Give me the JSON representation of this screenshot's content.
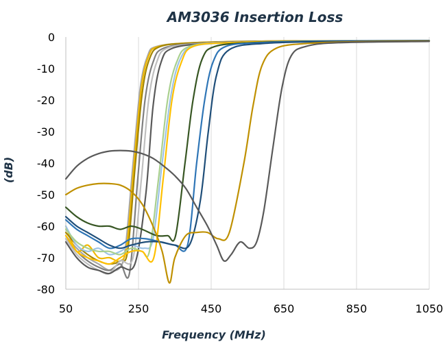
{
  "chart_data": {
    "type": "line",
    "title": "AM3036 Insertion Loss",
    "xlabel": "Frequency (MHz)",
    "ylabel": "(dB)",
    "xlim": [
      50,
      1050
    ],
    "ylim": [
      -80,
      0
    ],
    "x_ticks": [
      50,
      250,
      450,
      650,
      850,
      1050
    ],
    "y_ticks": [
      0,
      -10,
      -20,
      -30,
      -40,
      -50,
      -60,
      -70,
      -80
    ],
    "x_tick_labels": [
      "50",
      "250",
      "450",
      "650",
      "850",
      "1050"
    ],
    "y_tick_labels": [
      "0",
      "-10",
      "-20",
      "-30",
      "-40",
      "-50",
      "-60",
      "-70",
      "-80"
    ],
    "grid": "vertical",
    "legend": "none",
    "series": [
      {
        "color": "#a6a6a6",
        "values": [
          [
            50,
            -63
          ],
          [
            80,
            -67
          ],
          [
            110,
            -70
          ],
          [
            140,
            -72
          ],
          [
            170,
            -74
          ],
          [
            200,
            -73
          ],
          [
            215,
            -66
          ],
          [
            235,
            -40
          ],
          [
            255,
            -16
          ],
          [
            275,
            -6
          ],
          [
            300,
            -3
          ],
          [
            400,
            -1.8
          ],
          [
            600,
            -1.3
          ],
          [
            1050,
            -1.2
          ]
        ]
      },
      {
        "color": "#f0b800",
        "values": [
          [
            50,
            -60
          ],
          [
            80,
            -68
          ],
          [
            110,
            -66
          ],
          [
            140,
            -70
          ],
          [
            170,
            -70
          ],
          [
            200,
            -71
          ],
          [
            218,
            -66
          ],
          [
            238,
            -40
          ],
          [
            258,
            -16
          ],
          [
            278,
            -6
          ],
          [
            305,
            -3
          ],
          [
            400,
            -1.8
          ],
          [
            600,
            -1.3
          ],
          [
            1050,
            -1.2
          ]
        ]
      },
      {
        "color": "#a38500",
        "values": [
          [
            50,
            -62
          ],
          [
            80,
            -66
          ],
          [
            110,
            -69
          ],
          [
            140,
            -71
          ],
          [
            170,
            -72
          ],
          [
            200,
            -71
          ],
          [
            220,
            -68
          ],
          [
            240,
            -42
          ],
          [
            260,
            -18
          ],
          [
            280,
            -7
          ],
          [
            310,
            -3
          ],
          [
            400,
            -1.9
          ],
          [
            600,
            -1.3
          ],
          [
            1050,
            -1.2
          ]
        ]
      },
      {
        "color": "#7f7f7f",
        "values": [
          [
            50,
            -64
          ],
          [
            80,
            -68
          ],
          [
            110,
            -71
          ],
          [
            140,
            -73
          ],
          [
            170,
            -74
          ],
          [
            200,
            -72
          ],
          [
            225,
            -75
          ],
          [
            248,
            -45
          ],
          [
            268,
            -20
          ],
          [
            290,
            -8
          ],
          [
            320,
            -3.5
          ],
          [
            420,
            -2
          ],
          [
            600,
            -1.4
          ],
          [
            1050,
            -1.2
          ]
        ]
      },
      {
        "color": "#bfbfbf",
        "values": [
          [
            50,
            -64
          ],
          [
            80,
            -69
          ],
          [
            110,
            -72
          ],
          [
            140,
            -74
          ],
          [
            170,
            -75
          ],
          [
            200,
            -71
          ],
          [
            235,
            -70
          ],
          [
            258,
            -45
          ],
          [
            278,
            -20
          ],
          [
            300,
            -8
          ],
          [
            330,
            -3.5
          ],
          [
            430,
            -2
          ],
          [
            600,
            -1.4
          ],
          [
            1050,
            -1.2
          ]
        ]
      },
      {
        "color": "#595959",
        "values": [
          [
            50,
            -65
          ],
          [
            80,
            -70
          ],
          [
            110,
            -73
          ],
          [
            140,
            -74
          ],
          [
            170,
            -75
          ],
          [
            200,
            -73
          ],
          [
            240,
            -72
          ],
          [
            270,
            -50
          ],
          [
            290,
            -22
          ],
          [
            312,
            -8
          ],
          [
            345,
            -3.5
          ],
          [
            450,
            -2
          ],
          [
            620,
            -1.4
          ],
          [
            1050,
            -1.2
          ]
        ]
      },
      {
        "color": "#9dc3e6",
        "values": [
          [
            50,
            -60
          ],
          [
            80,
            -66
          ],
          [
            110,
            -68
          ],
          [
            140,
            -67
          ],
          [
            170,
            -69
          ],
          [
            200,
            -68
          ],
          [
            230,
            -66
          ],
          [
            265,
            -67
          ],
          [
            290,
            -64
          ],
          [
            315,
            -40
          ],
          [
            340,
            -18
          ],
          [
            365,
            -7
          ],
          [
            400,
            -3
          ],
          [
            500,
            -1.8
          ],
          [
            700,
            -1.3
          ],
          [
            1050,
            -1.2
          ]
        ]
      },
      {
        "color": "#a9d08e",
        "values": [
          [
            50,
            -61
          ],
          [
            80,
            -65
          ],
          [
            110,
            -67
          ],
          [
            140,
            -68
          ],
          [
            170,
            -68
          ],
          [
            200,
            -69
          ],
          [
            230,
            -67
          ],
          [
            260,
            -68
          ],
          [
            280,
            -68
          ],
          [
            305,
            -45
          ],
          [
            330,
            -20
          ],
          [
            355,
            -8
          ],
          [
            390,
            -3
          ],
          [
            500,
            -1.8
          ],
          [
            700,
            -1.3
          ],
          [
            1050,
            -1.2
          ]
        ]
      },
      {
        "color": "#ffc000",
        "values": [
          [
            50,
            -63
          ],
          [
            80,
            -68
          ],
          [
            110,
            -70
          ],
          [
            140,
            -71
          ],
          [
            170,
            -72
          ],
          [
            200,
            -70
          ],
          [
            230,
            -68
          ],
          [
            260,
            -68
          ],
          [
            292,
            -70
          ],
          [
            318,
            -45
          ],
          [
            342,
            -20
          ],
          [
            368,
            -8
          ],
          [
            400,
            -3
          ],
          [
            500,
            -1.8
          ],
          [
            700,
            -1.3
          ],
          [
            1050,
            -1.2
          ]
        ]
      },
      {
        "color": "#375623",
        "values": [
          [
            50,
            -54
          ],
          [
            80,
            -57
          ],
          [
            110,
            -59
          ],
          [
            140,
            -60
          ],
          [
            170,
            -60
          ],
          [
            200,
            -61
          ],
          [
            230,
            -60
          ],
          [
            260,
            -61
          ],
          [
            300,
            -63
          ],
          [
            330,
            -63
          ],
          [
            352,
            -63
          ],
          [
            378,
            -40
          ],
          [
            400,
            -20
          ],
          [
            425,
            -7
          ],
          [
            460,
            -3
          ],
          [
            560,
            -1.8
          ],
          [
            750,
            -1.3
          ],
          [
            1050,
            -1.2
          ]
        ]
      },
      {
        "color": "#2e75b6",
        "values": [
          [
            50,
            -58
          ],
          [
            80,
            -61
          ],
          [
            110,
            -63
          ],
          [
            140,
            -65
          ],
          [
            170,
            -67
          ],
          [
            200,
            -66
          ],
          [
            230,
            -64
          ],
          [
            270,
            -64
          ],
          [
            310,
            -65
          ],
          [
            350,
            -66
          ],
          [
            385,
            -66
          ],
          [
            410,
            -40
          ],
          [
            432,
            -20
          ],
          [
            455,
            -8
          ],
          [
            490,
            -3
          ],
          [
            590,
            -1.8
          ],
          [
            780,
            -1.3
          ],
          [
            1050,
            -1.2
          ]
        ]
      },
      {
        "color": "#1f4e79",
        "values": [
          [
            50,
            -57
          ],
          [
            80,
            -60
          ],
          [
            110,
            -62
          ],
          [
            140,
            -64
          ],
          [
            170,
            -66
          ],
          [
            200,
            -67
          ],
          [
            230,
            -66
          ],
          [
            270,
            -65
          ],
          [
            310,
            -65
          ],
          [
            350,
            -66
          ],
          [
            390,
            -66
          ],
          [
            420,
            -52
          ],
          [
            442,
            -30
          ],
          [
            465,
            -12
          ],
          [
            500,
            -4
          ],
          [
            600,
            -2
          ],
          [
            800,
            -1.4
          ],
          [
            1050,
            -1.2
          ]
        ]
      },
      {
        "color": "#bf9000",
        "values": [
          [
            50,
            -50
          ],
          [
            80,
            -48
          ],
          [
            110,
            -47
          ],
          [
            140,
            -46.5
          ],
          [
            170,
            -46.5
          ],
          [
            200,
            -47
          ],
          [
            230,
            -49
          ],
          [
            260,
            -53
          ],
          [
            290,
            -60
          ],
          [
            315,
            -68
          ],
          [
            335,
            -78
          ],
          [
            350,
            -70
          ],
          [
            380,
            -63
          ],
          [
            410,
            -62
          ],
          [
            440,
            -62
          ],
          [
            470,
            -64
          ],
          [
            500,
            -62
          ],
          [
            540,
            -40
          ],
          [
            565,
            -22
          ],
          [
            590,
            -9
          ],
          [
            630,
            -3.5
          ],
          [
            720,
            -2
          ],
          [
            850,
            -1.5
          ],
          [
            1050,
            -1.3
          ]
        ]
      },
      {
        "color": "#595959",
        "values": [
          [
            50,
            -45
          ],
          [
            80,
            -41
          ],
          [
            110,
            -38.5
          ],
          [
            140,
            -37
          ],
          [
            170,
            -36.2
          ],
          [
            200,
            -36
          ],
          [
            230,
            -36.2
          ],
          [
            260,
            -37
          ],
          [
            290,
            -38.5
          ],
          [
            320,
            -41
          ],
          [
            350,
            -44
          ],
          [
            380,
            -48
          ],
          [
            410,
            -54
          ],
          [
            440,
            -60
          ],
          [
            465,
            -66
          ],
          [
            485,
            -71
          ],
          [
            505,
            -69
          ],
          [
            530,
            -65
          ],
          [
            555,
            -67
          ],
          [
            575,
            -65
          ],
          [
            595,
            -55
          ],
          [
            620,
            -35
          ],
          [
            645,
            -16
          ],
          [
            670,
            -6
          ],
          [
            710,
            -3
          ],
          [
            800,
            -1.8
          ],
          [
            1050,
            -1.4
          ]
        ]
      }
    ]
  }
}
